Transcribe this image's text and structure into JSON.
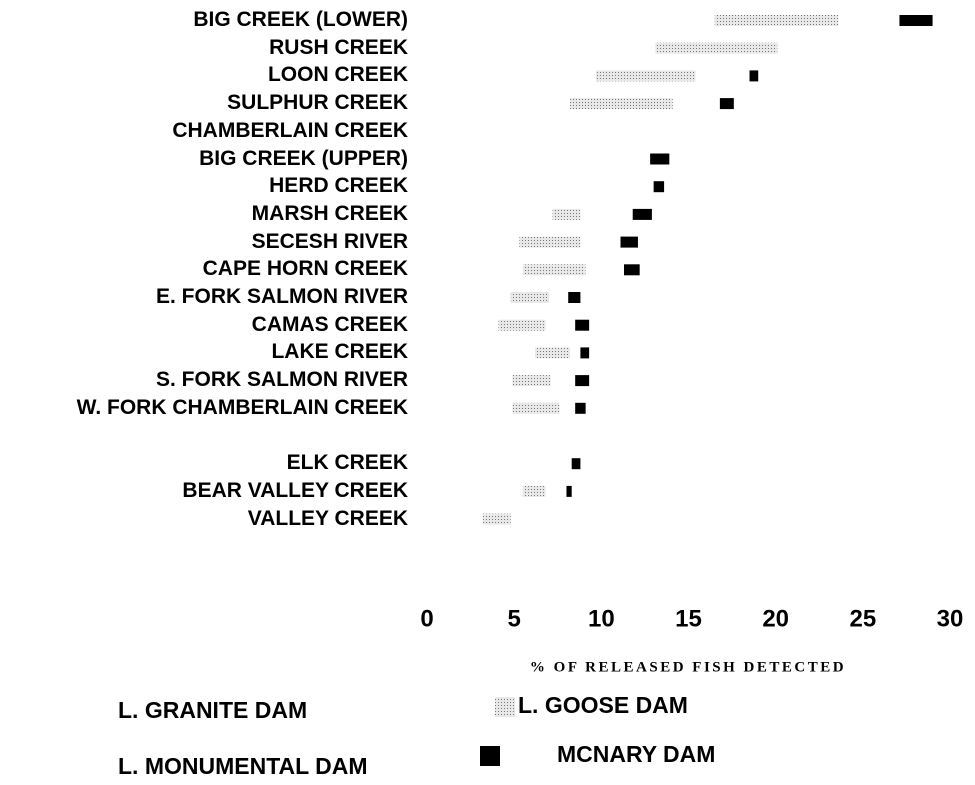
{
  "chart_data": {
    "type": "stacked_barh",
    "categories": [
      "BIG CREEK (LOWER)",
      "RUSH CREEK",
      "LOON CREEK",
      "SULPHUR CREEK",
      "CHAMBERLAIN CREEK",
      "BIG CREEK (UPPER)",
      "HERD CREEK",
      "MARSH CREEK",
      "SECESH RIVER",
      "CAPE HORN CREEK",
      "E. FORK SALMON RIVER",
      "CAMAS CREEK",
      "LAKE CREEK",
      "S. FORK SALMON RIVER",
      "W. FORK CHAMBERLAIN CREEK",
      "ELK CREEK",
      "BEAR VALLEY CREEK",
      "VALLEY CREEK"
    ],
    "series": [
      {
        "name": "L. GRANITE DAM",
        "color": "#ffffff",
        "values": [
          16.5,
          13.1,
          9.7,
          8.2,
          null,
          12.8,
          13.0,
          7.2,
          5.3,
          5.5,
          4.8,
          4.1,
          6.2,
          4.9,
          4.9,
          8.3,
          5.5,
          3.2
        ]
      },
      {
        "name": "L. GOOSE DAM",
        "color": "#c8c8c8",
        "values": [
          7.1,
          7.0,
          5.7,
          5.9,
          null,
          0,
          0,
          1.6,
          3.5,
          3.6,
          2.2,
          2.7,
          2.0,
          2.2,
          2.7,
          0,
          1.3,
          1.6
        ]
      },
      {
        "name": "L. MONUMENTAL DAM",
        "color": "#ffffff",
        "values": [
          3.5,
          0,
          3.1,
          2.7,
          null,
          0,
          0,
          3.0,
          2.3,
          2.2,
          1.1,
          1.7,
          0.6,
          1.4,
          0.9,
          0,
          1.2,
          0
        ]
      },
      {
        "name": "MCNARY DAM",
        "color": "#000000",
        "values": [
          1.9,
          0,
          0.5,
          0.8,
          null,
          1.1,
          0.6,
          1.1,
          1.0,
          0.9,
          0.7,
          0.8,
          0.5,
          0.8,
          0.6,
          0.5,
          0.3,
          0
        ]
      }
    ],
    "xlabel": "% OF RELEASED FISH DETECTED",
    "xlim": [
      0,
      30
    ],
    "xticks": [
      0,
      5,
      10,
      15,
      20,
      25,
      30
    ]
  }
}
